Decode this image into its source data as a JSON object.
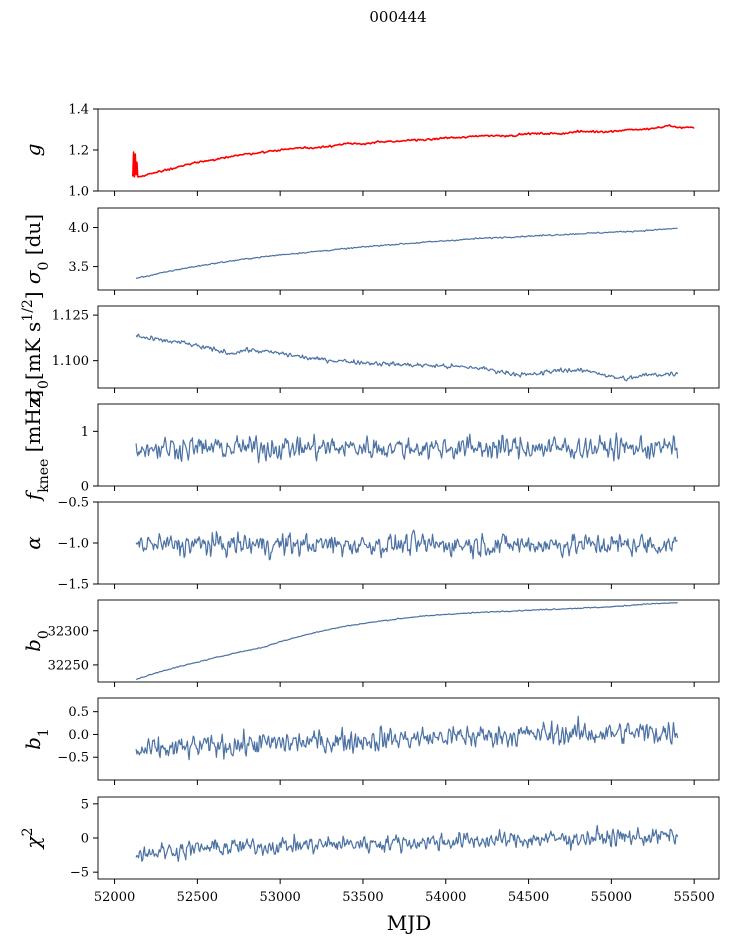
{
  "figure": {
    "title": "000444",
    "xlabel": "MJD",
    "xlim": [
      51900,
      55650
    ],
    "xticks": [
      52000,
      52500,
      53000,
      53500,
      54000,
      54500,
      55000,
      55500
    ]
  },
  "chart_data": [
    {
      "type": "line",
      "ylabel_parts": [
        {
          "t": "g",
          "it": true
        }
      ],
      "ylim": [
        1.0,
        1.4
      ],
      "yticks": [
        1.0,
        1.2,
        1.4
      ],
      "ytick_labels": [
        "1.0",
        "1.2",
        "1.4"
      ],
      "color": "#ff0000",
      "x_range": [
        52110,
        55500
      ],
      "series": [
        {
          "x": [
            52110,
            52115,
            52120,
            52125,
            52130,
            52135,
            52140,
            52200,
            52300,
            52400,
            52500,
            52600,
            52700,
            52800,
            52900,
            53000,
            53100,
            53200,
            53300,
            53400,
            53500,
            53600,
            53700,
            53800,
            53900,
            54000,
            54100,
            54200,
            54300,
            54400,
            54500,
            54600,
            54700,
            54800,
            54900,
            55000,
            55100,
            55200,
            55300,
            55350,
            55400,
            55500
          ],
          "y": [
            1.07,
            1.19,
            1.07,
            1.18,
            1.08,
            1.14,
            1.07,
            1.08,
            1.1,
            1.12,
            1.14,
            1.15,
            1.17,
            1.18,
            1.19,
            1.2,
            1.21,
            1.21,
            1.22,
            1.23,
            1.23,
            1.24,
            1.24,
            1.25,
            1.25,
            1.26,
            1.26,
            1.27,
            1.27,
            1.27,
            1.28,
            1.28,
            1.28,
            1.29,
            1.29,
            1.29,
            1.3,
            1.3,
            1.31,
            1.32,
            1.31,
            1.31
          ],
          "noise": 0.003
        }
      ]
    },
    {
      "type": "line",
      "ylabel_parts": [
        {
          "t": "σ",
          "it": true
        },
        {
          "t": "0",
          "sub": true
        },
        {
          "t": " [du]"
        }
      ],
      "ylim": [
        3.2,
        4.25
      ],
      "yticks": [
        3.5,
        4.0
      ],
      "ytick_labels": [
        "3.5",
        "4.0"
      ],
      "color": "#4c72a4",
      "series": [
        {
          "x": [
            52130,
            52200,
            52400,
            52600,
            52800,
            53000,
            53200,
            53400,
            53600,
            53800,
            54000,
            54200,
            54400,
            54600,
            54800,
            55000,
            55200,
            55400
          ],
          "y": [
            3.35,
            3.38,
            3.47,
            3.54,
            3.6,
            3.65,
            3.69,
            3.73,
            3.77,
            3.8,
            3.83,
            3.86,
            3.88,
            3.9,
            3.92,
            3.94,
            3.96,
            3.99
          ],
          "noise": 0.006
        }
      ]
    },
    {
      "type": "line",
      "ylabel_parts": [
        {
          "t": "σ",
          "it": true
        },
        {
          "t": "0",
          "sub": true
        },
        {
          "t": "[mK s"
        },
        {
          "t": "1/2",
          "sup": true
        },
        {
          "t": "]"
        }
      ],
      "ylim": [
        1.085,
        1.13
      ],
      "yticks": [
        1.1,
        1.125
      ],
      "ytick_labels": [
        "1.100",
        "1.125"
      ],
      "color": "#4c72a4",
      "series": [
        {
          "x": [
            52130,
            52200,
            52400,
            52600,
            52700,
            52800,
            53000,
            53200,
            53500,
            53700,
            54000,
            54200,
            54400,
            54500,
            54700,
            54900,
            55000,
            55100,
            55200,
            55400
          ],
          "y": [
            1.114,
            1.112,
            1.11,
            1.106,
            1.104,
            1.106,
            1.104,
            1.101,
            1.099,
            1.098,
            1.097,
            1.096,
            1.093,
            1.092,
            1.095,
            1.094,
            1.091,
            1.09,
            1.092,
            1.093
          ],
          "noise": 0.0009
        }
      ]
    },
    {
      "type": "line",
      "ylabel_parts": [
        {
          "t": "f",
          "it": true
        },
        {
          "t": "knee",
          "sub": true
        },
        {
          "t": " [mHz]"
        }
      ],
      "ylim": [
        0,
        1.5
      ],
      "yticks": [
        0,
        1
      ],
      "ytick_labels": [
        "0",
        "1"
      ],
      "color": "#4c72a4",
      "series": [
        {
          "x": [
            52130,
            55400
          ],
          "y": [
            0.7,
            0.7
          ],
          "noise": 0.14
        }
      ]
    },
    {
      "type": "line",
      "ylabel_parts": [
        {
          "t": "α",
          "it": true
        }
      ],
      "ylim": [
        -1.5,
        -0.5
      ],
      "yticks": [
        -1.5,
        -1.0,
        -0.5
      ],
      "ytick_labels": [
        "−1.5",
        "−1.0",
        "−0.5"
      ],
      "color": "#4c72a4",
      "series": [
        {
          "x": [
            52130,
            55400
          ],
          "y": [
            -1.02,
            -1.02
          ],
          "noise": 0.09
        }
      ]
    },
    {
      "type": "line",
      "ylabel_parts": [
        {
          "t": "b",
          "it": true
        },
        {
          "t": "0",
          "sub": true
        }
      ],
      "ylim": [
        32225,
        32345
      ],
      "yticks": [
        32250,
        32300
      ],
      "ytick_labels": [
        "32250",
        "32300"
      ],
      "color": "#4c72a4",
      "series": [
        {
          "x": [
            52130,
            52300,
            52500,
            52700,
            52900,
            53000,
            53200,
            53400,
            53600,
            53800,
            54000,
            54300,
            54600,
            55000,
            55200,
            55400
          ],
          "y": [
            32229,
            32242,
            32254,
            32266,
            32276,
            32284,
            32297,
            32307,
            32314,
            32320,
            32324,
            32328,
            32331,
            32335,
            32339,
            32341
          ],
          "noise": 0.5
        }
      ]
    },
    {
      "type": "line",
      "ylabel_parts": [
        {
          "t": "b",
          "it": true
        },
        {
          "t": "1",
          "sub": true
        }
      ],
      "ylim": [
        -1.0,
        0.8
      ],
      "yticks": [
        -0.5,
        0.0,
        0.5
      ],
      "ytick_labels": [
        "−0.5",
        "0.0",
        "0.5"
      ],
      "color": "#4c72a4",
      "series": [
        {
          "x": [
            52130,
            52600,
            53500,
            54500,
            55400
          ],
          "y": [
            -0.38,
            -0.25,
            -0.12,
            0.0,
            0.05
          ],
          "noise": 0.17
        }
      ]
    },
    {
      "type": "line",
      "ylabel_parts": [
        {
          "t": "χ",
          "it": true
        },
        {
          "t": "2",
          "sup": true
        }
      ],
      "ylim": [
        -6,
        6
      ],
      "yticks": [
        -5,
        0,
        5
      ],
      "ytick_labels": [
        "−5",
        "0",
        "5"
      ],
      "color": "#4c72a4",
      "series": [
        {
          "x": [
            52130,
            52600,
            53500,
            54500,
            55400
          ],
          "y": [
            -2.2,
            -1.4,
            -0.8,
            -0.2,
            0.3
          ],
          "noise": 0.85
        }
      ]
    }
  ]
}
